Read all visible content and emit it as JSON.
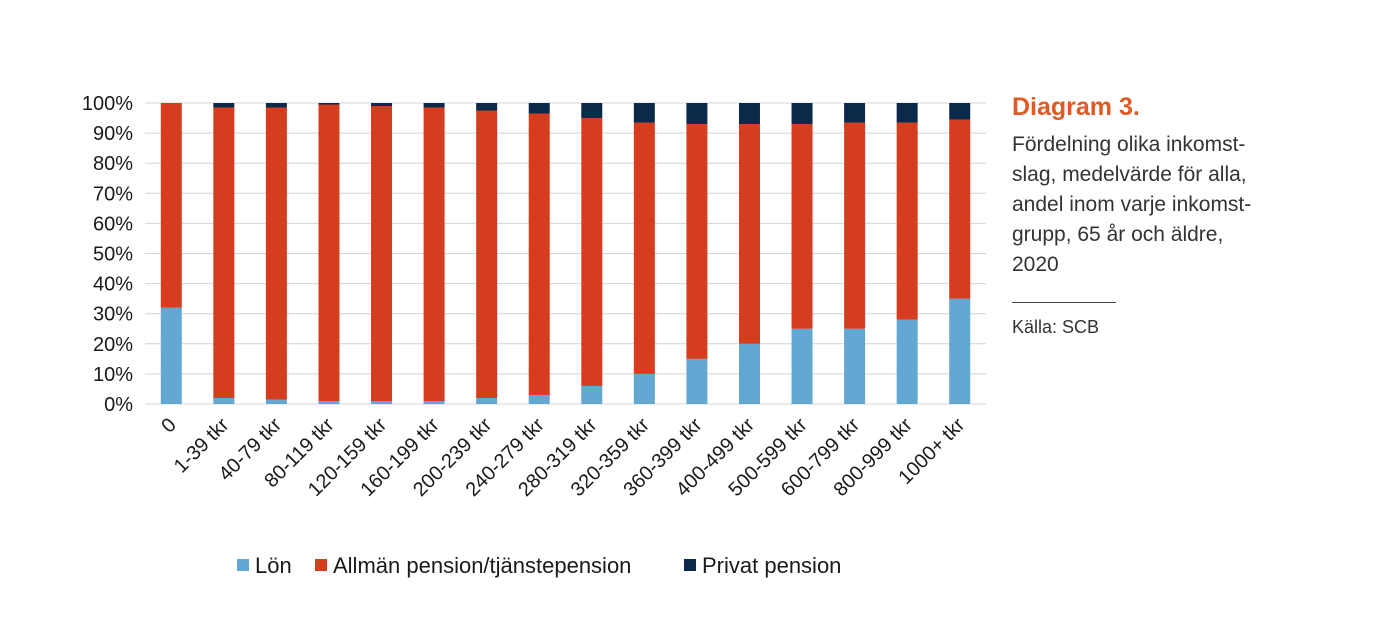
{
  "colors": {
    "lon": "#63a7d3",
    "allman": "#d63d1f",
    "privat": "#0b2a4a",
    "accent": "#e05a26",
    "grid": "#d4d4d4"
  },
  "panel": {
    "title": "Diagram 3.",
    "subtitle": "Fördelning olika inkomst-\nslag, medelvärde för alla,\nandel inom varje inkomst-\ngrupp, 65 år och äldre,\n2020",
    "source": "Källa: SCB"
  },
  "chart_data": {
    "type": "bar",
    "stacked": true,
    "categories": [
      "0",
      "1-39 tkr",
      "40-79 tkr",
      "80-119 tkr",
      "120-159 tkr",
      "160-199 tkr",
      "200-239 tkr",
      "240-279 tkr",
      "280-319 tkr",
      "320-359 tkr",
      "360-399 tkr",
      "400-499 tkr",
      "500-599 tkr",
      "600-799 tkr",
      "800-999 tkr",
      "1000+ tkr"
    ],
    "series": [
      {
        "name": "Lön",
        "color": "#63a7d3",
        "values": [
          32,
          2,
          1.5,
          1,
          1,
          1,
          2,
          3,
          6,
          10,
          15,
          20,
          25,
          25,
          28,
          35
        ]
      },
      {
        "name": "Allmän pension/tjänstepension",
        "color": "#d63d1f",
        "values": [
          68,
          96.5,
          97,
          98.5,
          98,
          97.5,
          95.5,
          93.5,
          89,
          83.5,
          78,
          73,
          68,
          68.5,
          65.5,
          59.5
        ]
      },
      {
        "name": "Privat pension",
        "color": "#0b2a4a",
        "values": [
          0,
          1.5,
          1.5,
          0.5,
          1,
          1.5,
          2.5,
          3.5,
          5,
          6.5,
          7,
          7,
          7,
          6.5,
          6.5,
          5.5
        ]
      }
    ],
    "yticks": [
      "0%",
      "10%",
      "20%",
      "30%",
      "40%",
      "50%",
      "60%",
      "70%",
      "80%",
      "90%",
      "100%"
    ],
    "ylim": [
      0,
      100
    ],
    "grid": true,
    "legend": "bottom"
  }
}
